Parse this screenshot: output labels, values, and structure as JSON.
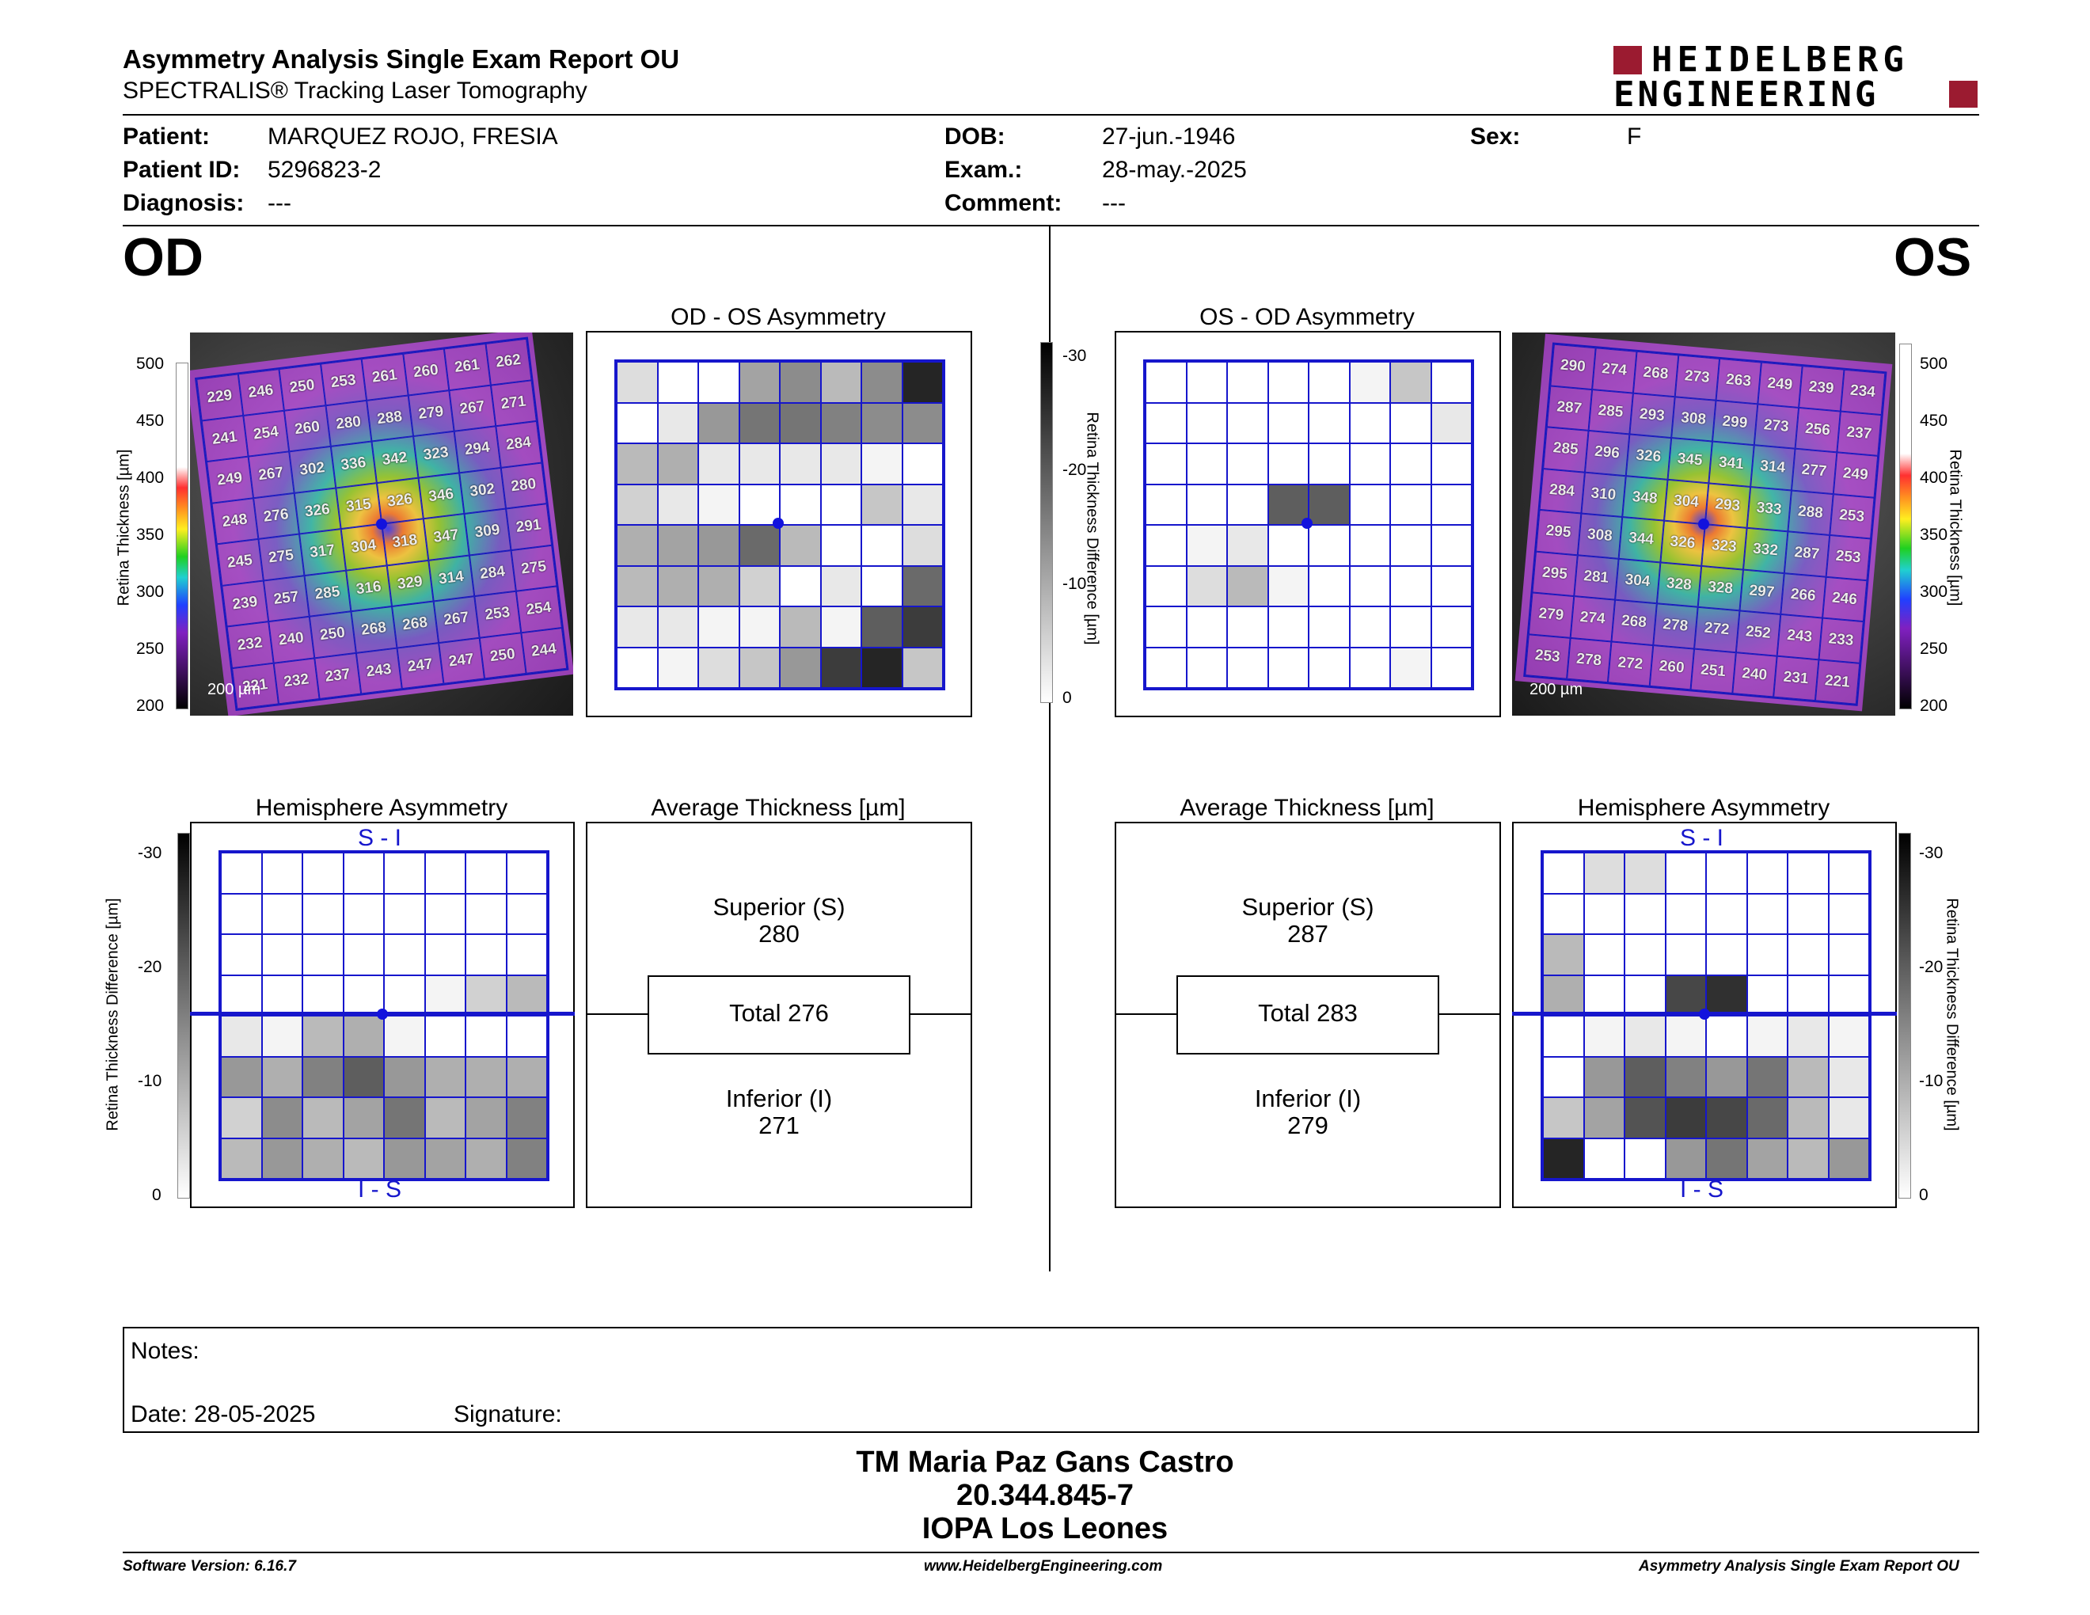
{
  "header": {
    "title": "Asymmetry Analysis Single Exam Report OU",
    "subtitle": "SPECTRALIS® Tracking Laser Tomography",
    "logo_line1": "HEIDELBERG",
    "logo_line2": "ENGINEERING"
  },
  "patient": {
    "patient_label": "Patient:",
    "patient_value": "MARQUEZ ROJO, FRESIA",
    "id_label": "Patient ID:",
    "id_value": "5296823-2",
    "diag_label": "Diagnosis:",
    "diag_value": "---",
    "dob_label": "DOB:",
    "dob_value": "27-jun.-1946",
    "exam_label": "Exam.:",
    "exam_value": "28-may.-2025",
    "comment_label": "Comment:",
    "comment_value": "---",
    "sex_label": "Sex:",
    "sex_value": "F"
  },
  "od": {
    "eye_label": "OD",
    "scale_bar": "200 µm",
    "thickness_values": [
      [
        229,
        246,
        250,
        253,
        261,
        260,
        261,
        262
      ],
      [
        241,
        254,
        260,
        280,
        288,
        279,
        267,
        271
      ],
      [
        249,
        267,
        302,
        336,
        342,
        323,
        294,
        284
      ],
      [
        248,
        276,
        326,
        315,
        326,
        346,
        302,
        280
      ],
      [
        245,
        275,
        317,
        304,
        318,
        347,
        309,
        291
      ],
      [
        239,
        257,
        285,
        316,
        329,
        314,
        284,
        275
      ],
      [
        232,
        240,
        250,
        268,
        268,
        267,
        253,
        254
      ],
      [
        221,
        232,
        237,
        243,
        247,
        247,
        250,
        244
      ]
    ],
    "asymmetry_title": "OD - OS Asymmetry",
    "asymmetry_grid": [
      [
        0.15,
        0,
        0,
        0.4,
        0.5,
        0.3,
        0.5,
        0.95
      ],
      [
        0,
        0.1,
        0.45,
        0.6,
        0.6,
        0.55,
        0.5,
        0.5
      ],
      [
        0.3,
        0.35,
        0.1,
        0.1,
        0.1,
        0.1,
        0.05,
        0
      ],
      [
        0.2,
        0.1,
        0.05,
        0,
        0,
        0,
        0.25,
        0.1
      ],
      [
        0.35,
        0.4,
        0.45,
        0.65,
        0.3,
        0,
        0,
        0.15
      ],
      [
        0.3,
        0.35,
        0.35,
        0.2,
        0,
        0.1,
        0,
        0.65
      ],
      [
        0.1,
        0.1,
        0.05,
        0.05,
        0.3,
        0.05,
        0.7,
        0.85
      ],
      [
        0,
        0.05,
        0.15,
        0.25,
        0.45,
        0.85,
        0.95,
        0.25
      ]
    ],
    "hemisphere_title": "Hemisphere Asymmetry",
    "hemisphere_grid": [
      [
        0,
        0,
        0,
        0,
        0,
        0,
        0,
        0
      ],
      [
        0,
        0,
        0,
        0,
        0,
        0,
        0,
        0
      ],
      [
        0,
        0,
        0,
        0,
        0,
        0,
        0,
        0
      ],
      [
        0,
        0,
        0,
        0,
        0,
        0.05,
        0.2,
        0.3
      ],
      [
        0.1,
        0.05,
        0.3,
        0.35,
        0.05,
        0,
        0,
        0
      ],
      [
        0.45,
        0.35,
        0.55,
        0.7,
        0.45,
        0.35,
        0.35,
        0.35
      ],
      [
        0.2,
        0.5,
        0.3,
        0.4,
        0.6,
        0.3,
        0.4,
        0.55
      ],
      [
        0.3,
        0.45,
        0.35,
        0.3,
        0.45,
        0.4,
        0.35,
        0.55
      ]
    ],
    "avg_title": "Average Thickness [µm]",
    "superior_label": "Superior (S)",
    "superior_value": "280",
    "total_label": "Total 276",
    "inferior_label": "Inferior (I)",
    "inferior_value": "271"
  },
  "os": {
    "eye_label": "OS",
    "scale_bar": "200 µm",
    "thickness_values": [
      [
        290,
        274,
        268,
        273,
        263,
        249,
        239,
        234
      ],
      [
        287,
        285,
        293,
        308,
        299,
        273,
        256,
        237
      ],
      [
        285,
        296,
        326,
        345,
        341,
        314,
        277,
        249
      ],
      [
        284,
        310,
        348,
        304,
        293,
        333,
        288,
        253
      ],
      [
        295,
        308,
        344,
        326,
        323,
        332,
        287,
        253
      ],
      [
        295,
        281,
        304,
        328,
        328,
        297,
        266,
        246
      ],
      [
        279,
        274,
        268,
        278,
        272,
        252,
        243,
        233
      ],
      [
        253,
        278,
        272,
        260,
        251,
        240,
        231,
        221
      ]
    ],
    "asymmetry_title": "OS - OD Asymmetry",
    "asymmetry_grid": [
      [
        0,
        0,
        0,
        0,
        0,
        0.05,
        0.25,
        0
      ],
      [
        0,
        0,
        0,
        0,
        0,
        0,
        0,
        0.1
      ],
      [
        0,
        0,
        0,
        0,
        0,
        0,
        0,
        0
      ],
      [
        0,
        0,
        0,
        0.7,
        0.7,
        0,
        0,
        0
      ],
      [
        0,
        0.05,
        0.1,
        0,
        0,
        0,
        0,
        0
      ],
      [
        0,
        0.15,
        0.3,
        0.05,
        0,
        0,
        0,
        0
      ],
      [
        0,
        0,
        0,
        0,
        0,
        0,
        0,
        0
      ],
      [
        0,
        0,
        0,
        0,
        0,
        0,
        0.05,
        0
      ]
    ],
    "hemisphere_title": "Hemisphere Asymmetry",
    "hemisphere_grid": [
      [
        0,
        0.15,
        0.15,
        0,
        0,
        0,
        0,
        0
      ],
      [
        0,
        0,
        0,
        0,
        0,
        0,
        0,
        0
      ],
      [
        0.3,
        0,
        0,
        0,
        0,
        0,
        0,
        0
      ],
      [
        0.35,
        0,
        0,
        0.8,
        0.9,
        0,
        0,
        0
      ],
      [
        0,
        0.05,
        0.1,
        0.05,
        0,
        0.05,
        0.1,
        0.05
      ],
      [
        0,
        0.45,
        0.7,
        0.55,
        0.45,
        0.6,
        0.3,
        0.1
      ],
      [
        0.25,
        0.4,
        0.75,
        0.85,
        0.8,
        0.65,
        0.3,
        0.1
      ],
      [
        0.95,
        0,
        0,
        0.45,
        0.6,
        0.4,
        0.3,
        0.45
      ]
    ],
    "avg_title": "Average Thickness [µm]",
    "superior_label": "Superior (S)",
    "superior_value": "287",
    "total_label": "Total 283",
    "inferior_label": "Inferior (I)",
    "inferior_value": "279"
  },
  "hemisphere_labels": {
    "top": "S - I",
    "bottom": "I - S"
  },
  "thickness_scale": {
    "label": "Retina Thickness [µm]",
    "ticks": [
      "500",
      "450",
      "400",
      "350",
      "300",
      "250",
      "200"
    ]
  },
  "difference_scale": {
    "label": "Retina Thickness Difference [µm]",
    "ticks": [
      "-30",
      "-20",
      "-10",
      "0"
    ]
  },
  "notes": {
    "notes_label": "Notes:",
    "date_label": "Date: 28-05-2025",
    "signature_label": "Signature:"
  },
  "signatory": {
    "name": "TM Maria Paz Gans Castro",
    "id": "20.344.845-7",
    "clinic": "IOPA Los Leones"
  },
  "footer": {
    "software": "Software Version: 6.16.7",
    "website": "www.HeidelbergEngineering.com",
    "report": "Asymmetry Analysis Single Exam Report OU"
  },
  "colors": {
    "grid_blue": "#1616cc",
    "logo_red": "#9b1b30"
  }
}
